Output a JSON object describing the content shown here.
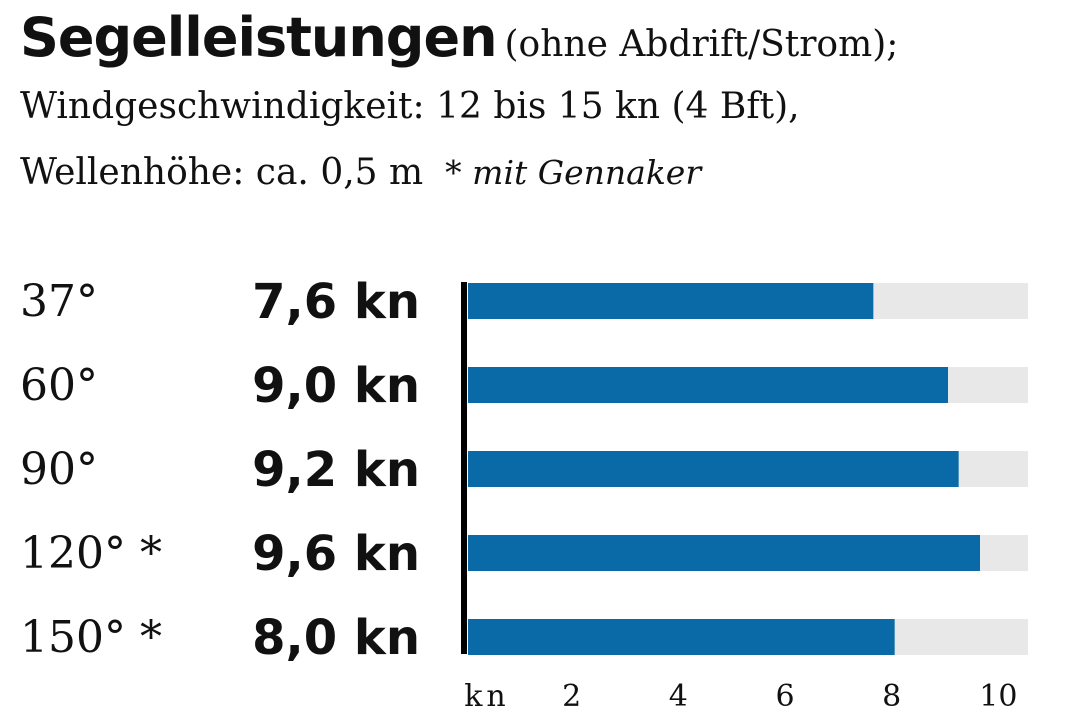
{
  "header": {
    "title": "Segelleistungen",
    "condition_1": "(ohne Abdrift/Strom);",
    "condition_2": "Windgeschwindigkeit: 12 bis 15 kn (4 Bft),",
    "condition_3": "Wellenhöhe: ca. 0,5 m",
    "note": "* mit Gennaker"
  },
  "chart_data": {
    "type": "bar",
    "orientation": "horizontal",
    "categories": [
      "37°",
      "60°",
      "90°",
      "120° *",
      "150° *"
    ],
    "value_labels": [
      "7,6 kn",
      "9,0 kn",
      "9,2 kn",
      "9,6 kn",
      "8,0 kn"
    ],
    "values": [
      7.6,
      9.0,
      9.2,
      9.6,
      8.0
    ],
    "xlim": [
      0,
      10.5
    ],
    "x_unit_label": "kn",
    "x_ticks": [
      2,
      4,
      6,
      8,
      10
    ],
    "x_tick_labels": [
      "2",
      "4",
      "6",
      "8",
      "10"
    ],
    "bar_color": "#0a6aa8",
    "track_color": "#e8e8e8",
    "grid": false
  }
}
